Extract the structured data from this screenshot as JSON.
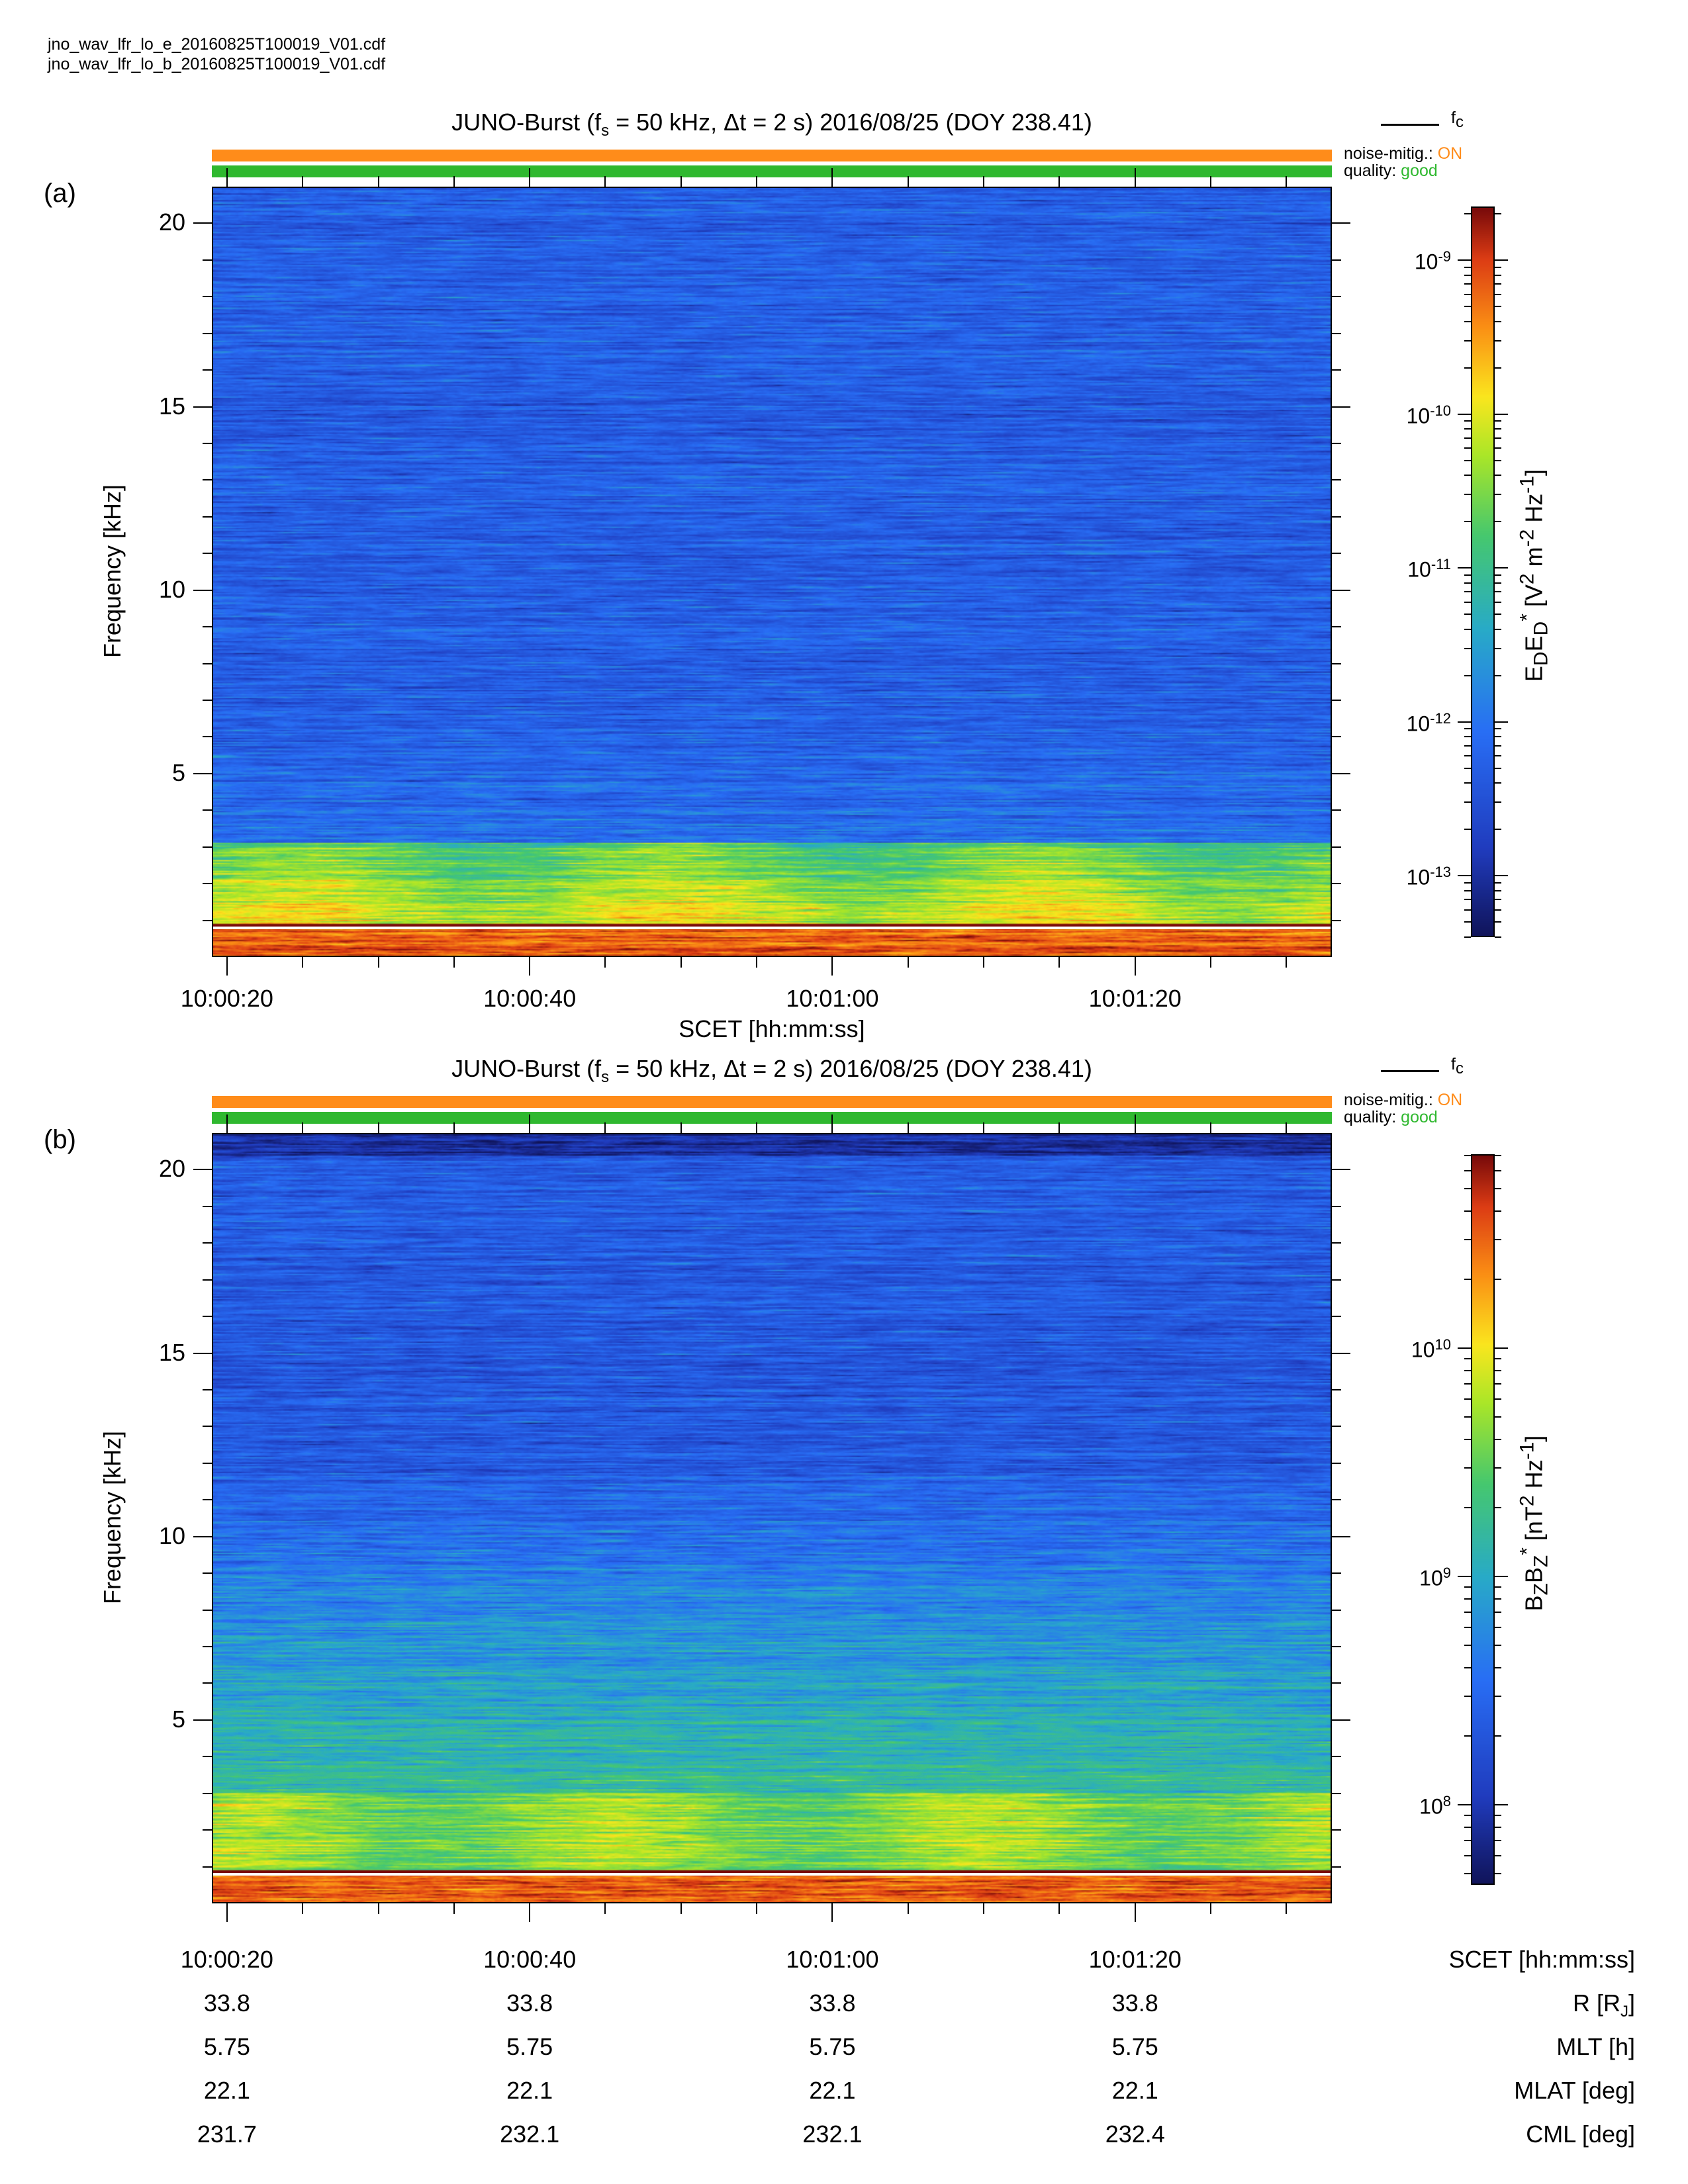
{
  "files": [
    "jno_wav_lfr_lo_e_20160825T100019_V01.cdf",
    "jno_wav_lfr_lo_b_20160825T100019_V01.cdf"
  ],
  "legend": {
    "fc_label": "f",
    "fc_sub": "c",
    "noise_label": "noise-mitig.:",
    "noise_value": "ON",
    "quality_label": "quality:",
    "quality_value": "good"
  },
  "colors": {
    "noise_bar": "#ff8c1a",
    "quality_bar": "#2fb82f",
    "noise_text": "#ff8c1a",
    "quality_text": "#2fb82f"
  },
  "ephemeris": {
    "rows": [
      {
        "label": "SCET [hh:mm:ss]",
        "values": [
          "10:00:20",
          "10:00:40",
          "10:01:00",
          "10:01:20"
        ]
      },
      {
        "label": "R [R",
        "label_sub": "J",
        "label_tail": "]",
        "values": [
          "33.8",
          "33.8",
          "33.8",
          "33.8"
        ]
      },
      {
        "label": "MLT [h]",
        "values": [
          "5.75",
          "5.75",
          "5.75",
          "5.75"
        ]
      },
      {
        "label": "MLAT [deg]",
        "values": [
          "22.1",
          "22.1",
          "22.1",
          "22.1"
        ]
      },
      {
        "label": "CML [deg]",
        "values": [
          "231.7",
          "232.1",
          "232.1",
          "232.4"
        ]
      }
    ]
  },
  "chart_data": [
    {
      "panel_label": "(a)",
      "type": "heatmap",
      "title_parts": {
        "pre": "JUNO-Burst (f",
        "sub": "s",
        "post": " = 50 kHz, Δt = 2 s)  2016/08/25 (DOY 238.41)"
      },
      "x_ticks": [
        "10:00:20",
        "10:00:40",
        "10:01:00",
        "10:01:20"
      ],
      "x_tick_seconds": [
        20,
        40,
        60,
        80
      ],
      "xlim_seconds": [
        19,
        93
      ],
      "xlabel": "SCET [hh:mm:ss]",
      "ylabel": "Frequency [kHz]",
      "y_ticks": [
        5,
        10,
        15,
        20
      ],
      "ylim": [
        0,
        21
      ],
      "fc_khz": 0.8,
      "colorbar": {
        "label_html": "E<sub>D</sub>E<sub>D</sub><sup>*</sup> [V<sup>2</sup> m<sup>-2</sup> Hz<sup>-1</sup>]",
        "log_min": -13.4,
        "log_max": -8.65,
        "ticks": [
          {
            "label": "10",
            "exp": "-9",
            "log": -9
          },
          {
            "label": "10",
            "exp": "-10",
            "log": -10
          },
          {
            "label": "10",
            "exp": "-11",
            "log": -11
          },
          {
            "label": "10",
            "exp": "-12",
            "log": -12
          },
          {
            "label": "10",
            "exp": "-13",
            "log": -13
          }
        ]
      },
      "colormap": "jet"
    },
    {
      "panel_label": "(b)",
      "type": "heatmap",
      "title_parts": {
        "pre": "JUNO-Burst (f",
        "sub": "s",
        "post": " = 50 kHz, Δt = 2 s)  2016/08/25 (DOY 238.41)"
      },
      "x_ticks": [
        "10:00:20",
        "10:00:40",
        "10:01:00",
        "10:01:20"
      ],
      "x_tick_seconds": [
        20,
        40,
        60,
        80
      ],
      "xlim_seconds": [
        19,
        93
      ],
      "xlabel": "SCET [hh:mm:ss]",
      "ylabel": "Frequency [kHz]",
      "y_ticks": [
        5,
        10,
        15,
        20
      ],
      "ylim": [
        0,
        21
      ],
      "fc_khz": 0.8,
      "colorbar": {
        "label_html": "B<sub>Z</sub>B<sub>Z</sub><sup>*</sup> [nT<sup>2</sup> Hz<sup>-1</sup>]",
        "log_min": 7.65,
        "log_max": 10.85,
        "ticks": [
          {
            "label": "10",
            "exp": "10",
            "log": 10
          },
          {
            "label": "10",
            "exp": "9",
            "log": 9
          },
          {
            "label": "10",
            "exp": "8",
            "log": 8
          }
        ]
      },
      "colormap": "jet"
    }
  ]
}
